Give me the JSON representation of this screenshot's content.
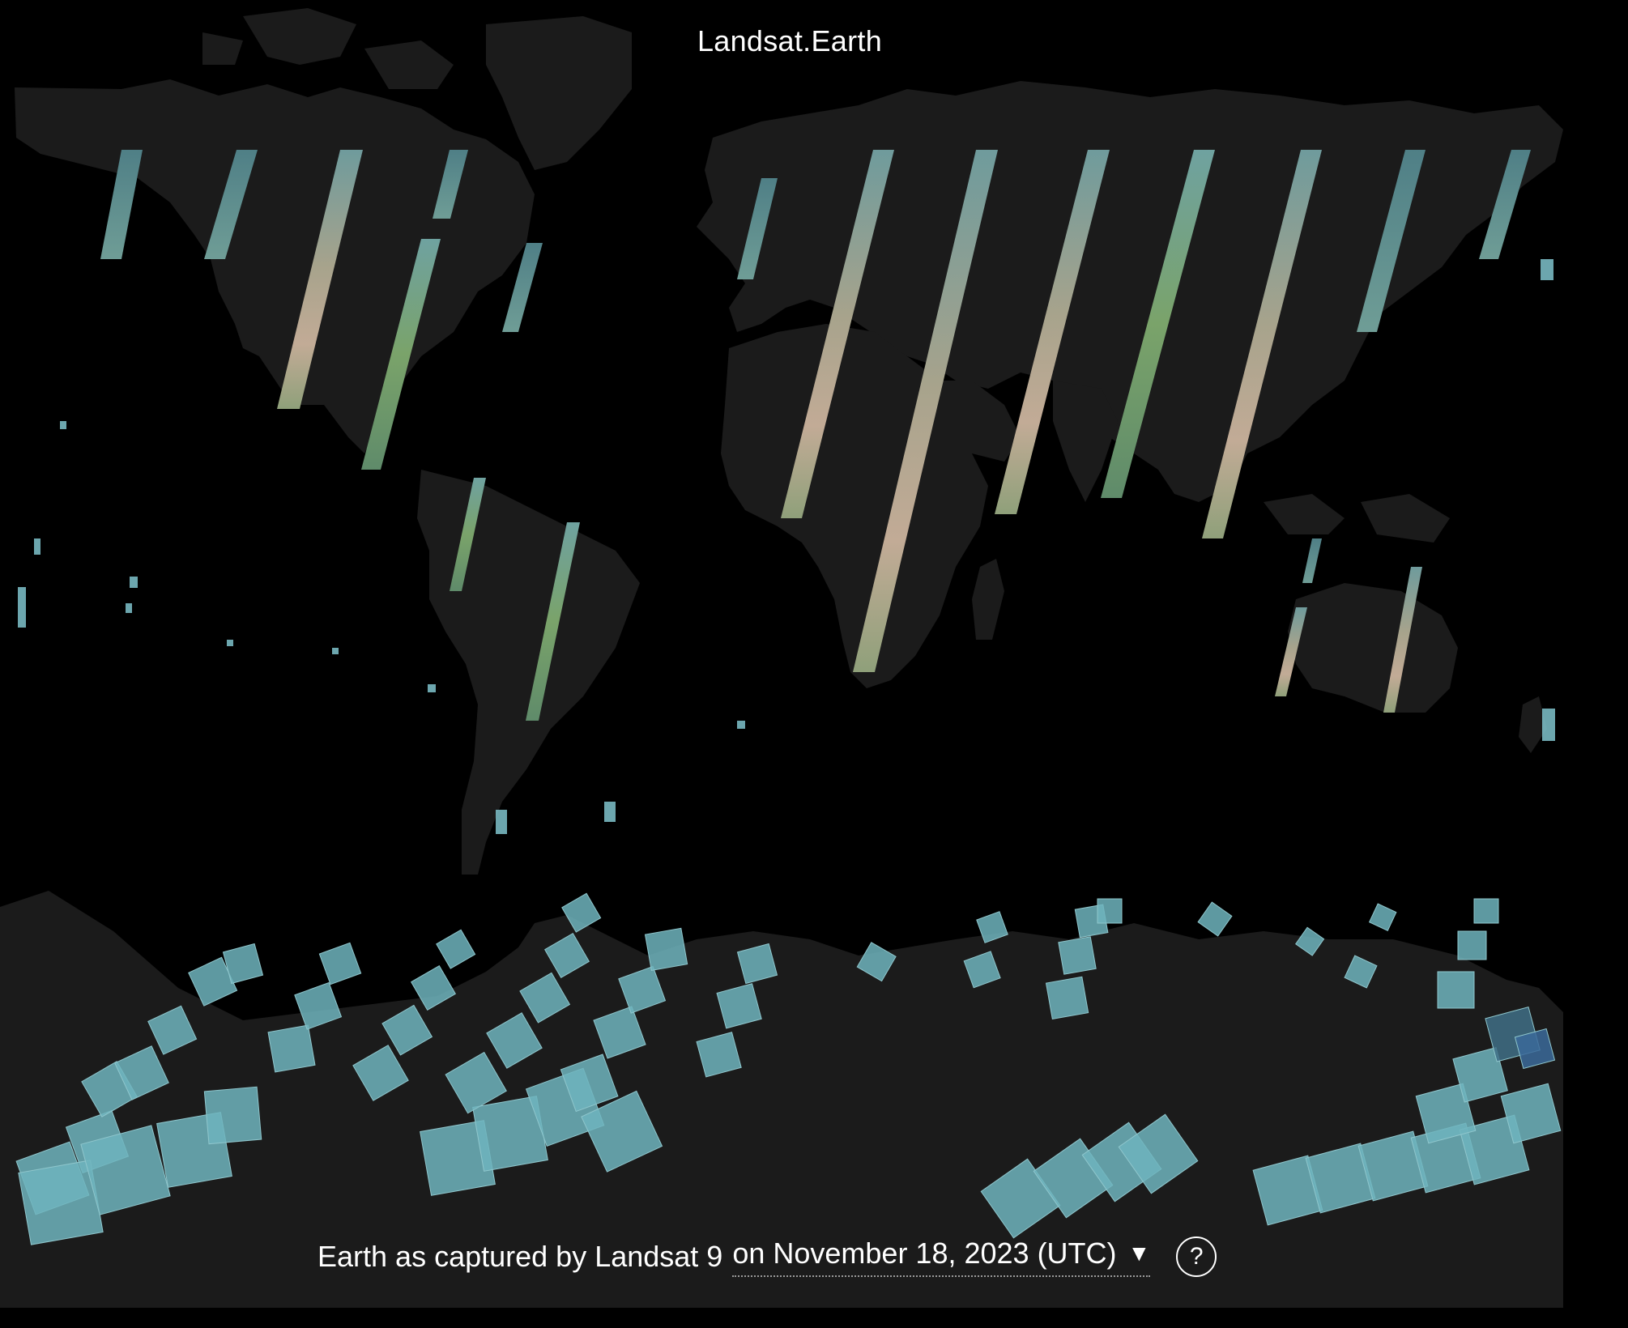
{
  "header": {
    "title": "Landsat.Earth"
  },
  "caption": {
    "prefix": "Earth as captured by Landsat 9",
    "date_label": "on November 18, 2023 (UTC)",
    "caret_icon": "▼",
    "help_icon": "?"
  },
  "colors": {
    "background": "#000000",
    "land": "#1b1b1b",
    "ice_tile": "#6fb4bd",
    "desert_strip": "#b8a592",
    "vegetation_strip": "#7fa05e",
    "text": "#ffffff"
  }
}
